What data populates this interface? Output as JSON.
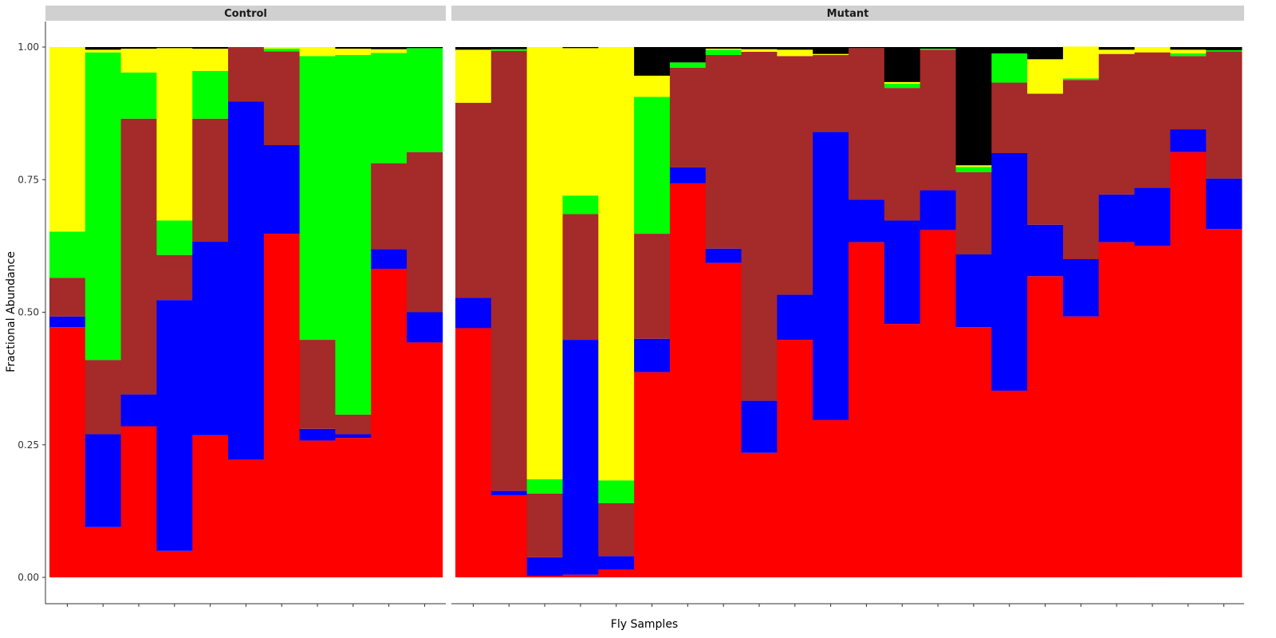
{
  "chart_data": {
    "type": "bar",
    "stacked": true,
    "xlabel": "Fly Samples",
    "ylabel": "Fractional Abundance",
    "ylim": [
      0,
      1
    ],
    "yticks": [
      0,
      0.25,
      0.5,
      0.75,
      1.0
    ],
    "ytick_labels": [
      "0.00",
      "0.25",
      "0.50",
      "0.75",
      "1.00"
    ],
    "legend": "none",
    "grid": false,
    "stack_order": [
      "red",
      "blue",
      "brown",
      "green",
      "yellow",
      "black"
    ],
    "colors": {
      "red": "#ff0000",
      "blue": "#0000ff",
      "brown": "#a52a2a",
      "green": "#00ff00",
      "yellow": "#ffff00",
      "black": "#000000"
    },
    "panels": [
      {
        "name": "Control",
        "samples": [
          [
            0.472,
            0.02,
            0.073,
            0.087,
            0.348,
            0.0
          ],
          [
            0.095,
            0.175,
            0.14,
            0.58,
            0.005,
            0.005
          ],
          [
            0.285,
            0.06,
            0.52,
            0.087,
            0.045,
            0.003
          ],
          [
            0.05,
            0.473,
            0.085,
            0.065,
            0.325,
            0.002
          ],
          [
            0.268,
            0.365,
            0.232,
            0.09,
            0.042,
            0.003
          ],
          [
            0.222,
            0.675,
            0.103,
            0.0,
            0.0,
            0.0
          ],
          [
            0.648,
            0.167,
            0.177,
            0.005,
            0.003,
            0.0
          ],
          [
            0.258,
            0.022,
            0.168,
            0.535,
            0.017,
            0.0
          ],
          [
            0.263,
            0.007,
            0.037,
            0.678,
            0.012,
            0.003
          ],
          [
            0.582,
            0.037,
            0.162,
            0.208,
            0.007,
            0.004
          ],
          [
            0.443,
            0.057,
            0.302,
            0.196,
            0.0,
            0.002
          ]
        ]
      },
      {
        "name": "Mutant",
        "samples": [
          [
            0.47,
            0.057,
            0.368,
            0.0,
            0.1,
            0.005
          ],
          [
            0.155,
            0.008,
            0.83,
            0.003,
            0.0,
            0.004
          ],
          [
            0.003,
            0.035,
            0.12,
            0.027,
            0.815,
            0.0
          ],
          [
            0.005,
            0.443,
            0.237,
            0.035,
            0.278,
            0.002
          ],
          [
            0.015,
            0.025,
            0.1,
            0.043,
            0.817,
            0.0
          ],
          [
            0.387,
            0.063,
            0.198,
            0.258,
            0.04,
            0.054
          ],
          [
            0.743,
            0.03,
            0.188,
            0.01,
            0.0,
            0.029
          ],
          [
            0.593,
            0.027,
            0.365,
            0.01,
            0.002,
            0.003
          ],
          [
            0.235,
            0.098,
            0.658,
            0.0,
            0.005,
            0.004
          ],
          [
            0.448,
            0.085,
            0.45,
            0.0,
            0.012,
            0.005
          ],
          [
            0.297,
            0.543,
            0.145,
            0.0,
            0.002,
            0.013
          ],
          [
            0.632,
            0.08,
            0.286,
            0.0,
            0.0,
            0.002
          ],
          [
            0.478,
            0.195,
            0.25,
            0.008,
            0.003,
            0.066
          ],
          [
            0.655,
            0.075,
            0.265,
            0.002,
            0.0,
            0.003
          ],
          [
            0.472,
            0.137,
            0.155,
            0.01,
            0.003,
            0.223
          ],
          [
            0.352,
            0.448,
            0.133,
            0.055,
            0.0,
            0.012
          ],
          [
            0.568,
            0.097,
            0.247,
            0.0,
            0.065,
            0.023
          ],
          [
            0.492,
            0.108,
            0.338,
            0.003,
            0.06,
            0.0
          ],
          [
            0.632,
            0.09,
            0.265,
            0.0,
            0.008,
            0.005
          ],
          [
            0.625,
            0.11,
            0.255,
            0.0,
            0.01,
            0.0
          ],
          [
            0.802,
            0.043,
            0.138,
            0.005,
            0.007,
            0.005
          ],
          [
            0.657,
            0.095,
            0.24,
            0.002,
            0.0,
            0.006
          ]
        ]
      }
    ]
  }
}
